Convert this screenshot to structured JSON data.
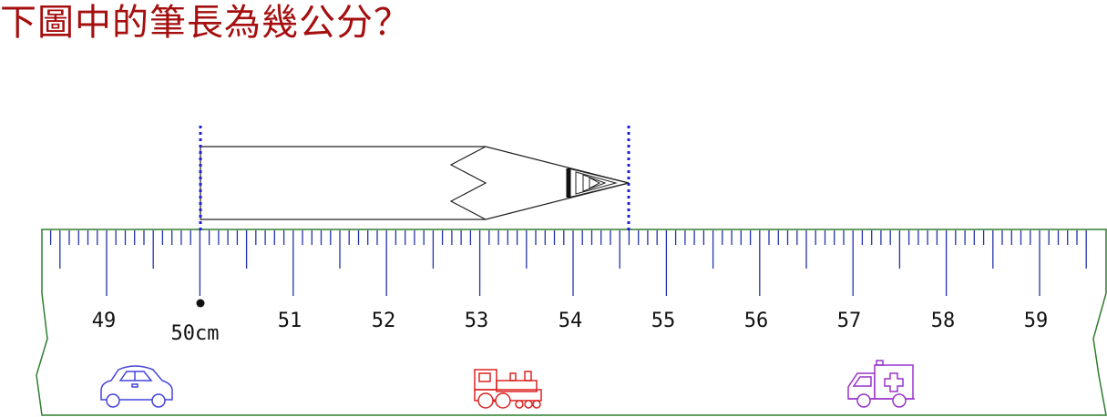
{
  "question": "下圖中的筆長為幾公分？",
  "ruler": {
    "start_cm": 49,
    "end_cm": 59,
    "labels": [
      "49",
      "50cm",
      "51",
      "52",
      "53",
      "54",
      "55",
      "56",
      "57",
      "58",
      "59"
    ],
    "marker_value_cm": 50
  },
  "pencil": {
    "start_cm": 50,
    "end_cm": 54.6
  },
  "colors": {
    "question": "#a50f0f",
    "ruler_edge": "#2e7d2e",
    "ticks": "#2233aa",
    "guide_lines": "#1f1fd6",
    "car": "#4444dd",
    "train": "#dd2222",
    "ambulance": "#9933cc"
  },
  "icons": [
    "car-icon",
    "train-icon",
    "ambulance-icon"
  ]
}
